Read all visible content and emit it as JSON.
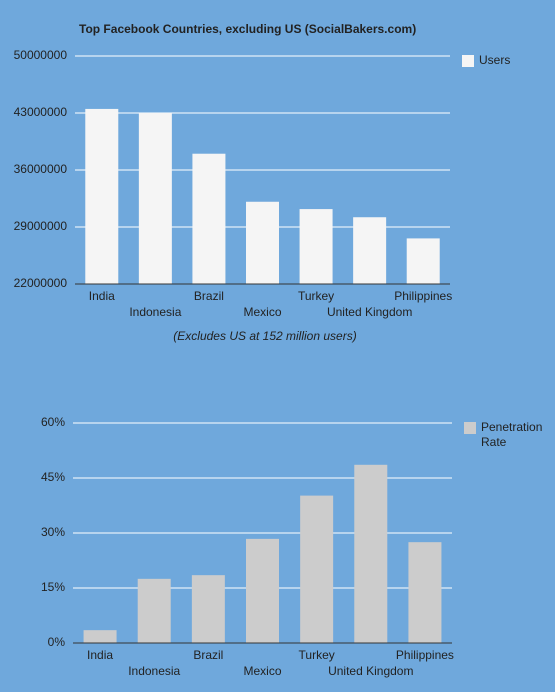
{
  "chart_data": [
    {
      "type": "bar",
      "title": "Top Facebook Countries, excluding US (SocialBakers.com)",
      "annotation": "(Excludes US at 152 million users)",
      "categories": [
        "India",
        "Indonesia",
        "Brazil",
        "Mexico",
        "Turkey",
        "United Kingdom",
        "Philippines"
      ],
      "series": [
        {
          "name": "Users",
          "color": "#f5f5f5",
          "values": [
            43500000,
            43000000,
            38000000,
            32100000,
            31200000,
            30200000,
            27600000
          ]
        }
      ],
      "ylim": [
        22000000,
        50000000
      ],
      "yticks": [
        22000000,
        29000000,
        36000000,
        43000000,
        50000000
      ],
      "grid": true,
      "legend": "right"
    },
    {
      "type": "bar",
      "categories": [
        "India",
        "Indonesia",
        "Brazil",
        "Mexico",
        "Turkey",
        "United Kingdom",
        "Philippines"
      ],
      "series": [
        {
          "name": "Penetration Rate",
          "color": "#cccccc",
          "values": [
            3.5,
            17.5,
            18.5,
            28.4,
            40.2,
            48.6,
            27.5
          ]
        }
      ],
      "ylim": [
        0,
        60
      ],
      "yticks": [
        {
          "value": 0,
          "label": "0%"
        },
        {
          "value": 15,
          "label": "15%"
        },
        {
          "value": 30,
          "label": "30%"
        },
        {
          "value": 45,
          "label": "45%"
        },
        {
          "value": 60,
          "label": "60%"
        }
      ],
      "grid": true,
      "legend": "right"
    }
  ]
}
